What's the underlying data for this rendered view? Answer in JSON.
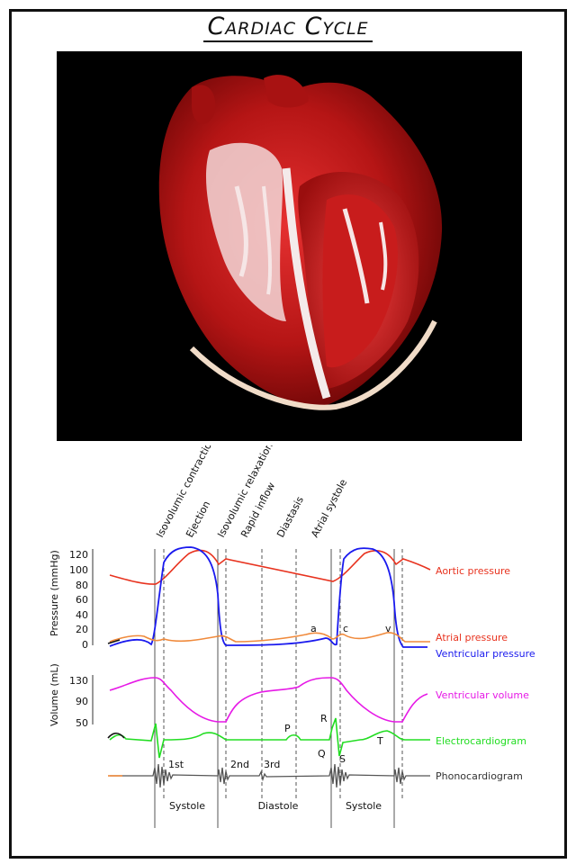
{
  "title": "Cardiac Cycle",
  "phases": [
    "Isovolumic contraction",
    "Ejection",
    "Isovolumic relaxation",
    "Rapid inflow",
    "Diastasis",
    "Atrial systole"
  ],
  "pressure_axis": {
    "label": "Pressure (mmHg)",
    "ticks": [
      "120",
      "100",
      "80",
      "60",
      "40",
      "20",
      "0"
    ]
  },
  "volume_axis": {
    "label": "Volume (mL)",
    "ticks": [
      "130",
      "90",
      "50"
    ]
  },
  "legend": {
    "aortic": "Aortic pressure",
    "atrial": "Atrial pressure",
    "ventricular": "Ventricular pressure",
    "volume": "Ventricular volume",
    "ecg": "Electrocardiogram",
    "phono": "Phonocardiogram"
  },
  "wave_labels": {
    "a": "a",
    "c": "c",
    "v": "v",
    "P": "P",
    "Q": "Q",
    "R": "R",
    "S": "S",
    "T": "T"
  },
  "heart_sounds": [
    "1st",
    "2nd",
    "3rd"
  ],
  "periods": [
    "Systole",
    "Diastole",
    "Systole"
  ],
  "colors": {
    "aortic": "#e8331f",
    "atrial": "#f08a3c",
    "ventricular": "#1a1aee",
    "volume": "#e619e6",
    "ecg": "#22dd22",
    "phono": "#555555"
  }
}
